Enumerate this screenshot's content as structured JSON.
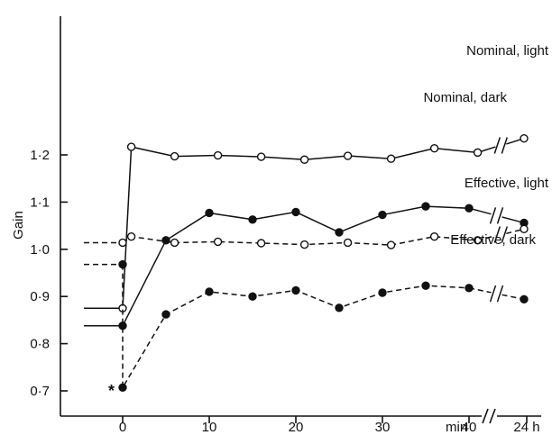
{
  "chart_data": {
    "type": "line",
    "ylabel": "Gain",
    "ylim": [
      0.7,
      1.2
    ],
    "yticks": [
      0.7,
      0.8,
      0.9,
      1.0,
      1.1,
      1.2
    ],
    "ytick_labels": [
      "0·7",
      "0·8",
      "0·9",
      "1·0",
      "1·1",
      "1·2"
    ],
    "xticks": [
      0,
      10,
      20,
      30,
      40
    ],
    "xtick_labels": [
      "0",
      "10",
      "20",
      "30",
      "40"
    ],
    "x_unit_label": "min",
    "x_break_tick_label": "24 h",
    "x_break_value": "24 h",
    "annotation": "*",
    "series": [
      {
        "name": "Nominal, light",
        "marker": "open",
        "dashed": false,
        "baseline": 0.875,
        "x": [
          0,
          1,
          6,
          11,
          16,
          21,
          26,
          31,
          36,
          41
        ],
        "y": [
          0.875,
          1.217,
          1.197,
          1.199,
          1.196,
          1.19,
          1.198,
          1.192,
          1.214,
          1.205
        ],
        "y_24h": 1.235
      },
      {
        "name": "Nominal, dark",
        "marker": "filled",
        "dashed": false,
        "baseline": 0.838,
        "x": [
          0,
          5,
          10,
          15,
          20,
          25,
          30,
          35,
          40
        ],
        "y": [
          0.838,
          1.019,
          1.077,
          1.063,
          1.079,
          1.036,
          1.073,
          1.091,
          1.087
        ],
        "y_24h": 1.056
      },
      {
        "name": "Effective, light",
        "marker": "open",
        "dashed": true,
        "baseline": 1.014,
        "x": [
          0,
          1,
          6,
          11,
          16,
          21,
          26,
          31,
          36,
          41
        ],
        "y": [
          1.014,
          1.027,
          1.014,
          1.016,
          1.013,
          1.01,
          1.014,
          1.009,
          1.027,
          1.019
        ],
        "y_24h": 1.043
      },
      {
        "name": "Effective, dark",
        "marker": "filled",
        "dashed": true,
        "baseline": 0.968,
        "x": [
          0,
          0,
          5,
          10,
          15,
          20,
          25,
          30,
          35,
          40
        ],
        "y": [
          0.968,
          0.707,
          0.862,
          0.91,
          0.9,
          0.913,
          0.876,
          0.908,
          0.923,
          0.918
        ],
        "y_24h": 0.894
      }
    ]
  }
}
